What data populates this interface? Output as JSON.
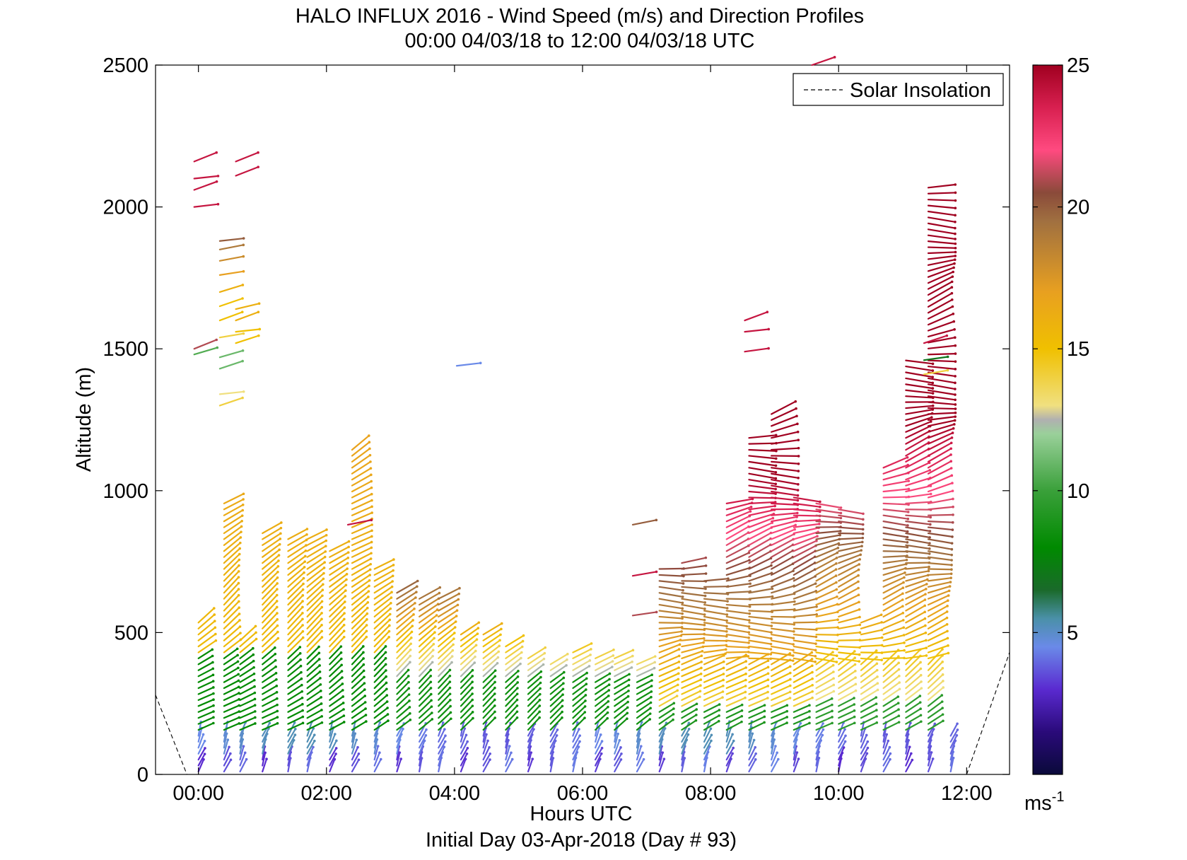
{
  "chart_data": {
    "type": "scatter",
    "title": "HALO INFLUX 2016 - Wind Speed (m/s) and Direction Profiles",
    "subtitle": "00:00 04/03/18 to 12:00 04/03/18  UTC",
    "xlabel": "Hours UTC",
    "footer": "Initial Day 03-Apr-2018 (Day # 93)",
    "ylabel": "Altitude (m)",
    "xlim": [
      -0.67,
      12.67
    ],
    "ylim": [
      0,
      2500
    ],
    "x_ticks": [
      0,
      2,
      4,
      6,
      8,
      10,
      12
    ],
    "x_tick_labels": [
      "00:00",
      "02:00",
      "04:00",
      "06:00",
      "08:00",
      "10:00",
      "12:00"
    ],
    "y_ticks": [
      0,
      500,
      1000,
      1500,
      2000,
      2500
    ],
    "y_tick_labels": [
      "0",
      "500",
      "1000",
      "1500",
      "2000",
      "2500"
    ],
    "legend": {
      "position": "top-right",
      "entries": [
        "Solar Insolation"
      ]
    },
    "colorbar": {
      "range": [
        0,
        25
      ],
      "ticks": [
        5,
        10,
        15,
        20,
        25
      ],
      "tick_labels": [
        "5",
        "10",
        "15",
        "20",
        "25"
      ],
      "unit_label": "ms",
      "unit_exponent": "-1"
    },
    "solar_insolation": {
      "style": "dashed",
      "color": "#000000",
      "left": [
        [
          -0.67,
          280
        ],
        [
          -0.18,
          0
        ]
      ],
      "right": [
        [
          12.0,
          0
        ],
        [
          12.67,
          430
        ]
      ]
    },
    "profiles": [
      {
        "t": 0.0,
        "low": 0,
        "high": 540,
        "extra": [
          [
            1480,
            10.5
          ],
          [
            1500,
            21
          ],
          [
            2000,
            24
          ],
          [
            2060,
            24
          ],
          [
            2100,
            24
          ],
          [
            2160,
            24
          ]
        ]
      },
      {
        "t": 0.4,
        "low": 0,
        "high": 960,
        "extra": [
          [
            1300,
            14
          ],
          [
            1340,
            13
          ],
          [
            1430,
            11
          ],
          [
            1470,
            11
          ],
          [
            1540,
            14
          ],
          [
            1600,
            15
          ],
          [
            1650,
            15
          ],
          [
            1700,
            16
          ],
          [
            1760,
            17
          ],
          [
            1810,
            18
          ],
          [
            1850,
            19
          ],
          [
            1880,
            20
          ]
        ]
      },
      {
        "t": 0.65,
        "low": 0,
        "high": 480,
        "extra": [
          [
            1520,
            15
          ],
          [
            1560,
            15
          ],
          [
            1600,
            16
          ],
          [
            1640,
            16
          ],
          [
            2110,
            24
          ],
          [
            2160,
            24
          ]
        ]
      },
      {
        "t": 1.0,
        "low": 0,
        "high": 860
      },
      {
        "t": 1.4,
        "low": 0,
        "high": 830
      },
      {
        "t": 1.7,
        "low": 0,
        "high": 830
      },
      {
        "t": 2.05,
        "low": 0,
        "high": 790
      },
      {
        "t": 2.4,
        "low": 0,
        "high": 1160,
        "extra": [
          [
            880,
            24
          ]
        ]
      },
      {
        "t": 2.75,
        "low": 0,
        "high": 740
      },
      {
        "t": 3.1,
        "low": 0,
        "high": 660
      },
      {
        "t": 3.45,
        "low": 0,
        "high": 620
      },
      {
        "t": 3.75,
        "low": 0,
        "high": 620
      },
      {
        "t": 4.1,
        "low": 0,
        "high": 500,
        "extra": [
          [
            1440,
            4.5
          ]
        ]
      },
      {
        "t": 4.45,
        "low": 0,
        "high": 500
      },
      {
        "t": 4.8,
        "low": 0,
        "high": 460
      },
      {
        "t": 5.15,
        "low": 0,
        "high": 410
      },
      {
        "t": 5.5,
        "low": 0,
        "high": 390
      },
      {
        "t": 5.85,
        "low": 0,
        "high": 450
      },
      {
        "t": 6.2,
        "low": 0,
        "high": 420
      },
      {
        "t": 6.5,
        "low": 0,
        "high": 420
      },
      {
        "t": 6.85,
        "low": 0,
        "high": 400,
        "extra": [
          [
            700,
            24
          ],
          [
            560,
            21
          ],
          [
            880,
            20
          ]
        ]
      },
      {
        "t": 7.2,
        "low": 0,
        "high": 740
      },
      {
        "t": 7.55,
        "low": 0,
        "high": 760
      },
      {
        "t": 7.9,
        "low": 0,
        "high": 700
      },
      {
        "t": 8.25,
        "low": 0,
        "high": 960
      },
      {
        "t": 8.6,
        "low": 0,
        "high": 1200,
        "extra": [
          [
            1490,
            24
          ],
          [
            1560,
            24
          ],
          [
            1600,
            24
          ]
        ]
      },
      {
        "t": 8.95,
        "low": 0,
        "high": 1280
      },
      {
        "t": 9.3,
        "low": 0,
        "high": 980
      },
      {
        "t": 9.65,
        "low": 0,
        "high": 960,
        "extra": [
          [
            2500,
            24
          ]
        ]
      },
      {
        "t": 10.0,
        "low": 0,
        "high": 950
      },
      {
        "t": 10.35,
        "low": 0,
        "high": 540
      },
      {
        "t": 10.7,
        "low": 0,
        "high": 1090
      },
      {
        "t": 11.05,
        "low": 0,
        "high": 1460
      },
      {
        "t": 11.4,
        "low": 0,
        "high": 2080,
        "extra": [
          [
            1410,
            14
          ],
          [
            1460,
            7
          ],
          [
            1520,
            24
          ]
        ]
      },
      {
        "t": 11.75,
        "low": 0,
        "high": 150
      }
    ]
  }
}
